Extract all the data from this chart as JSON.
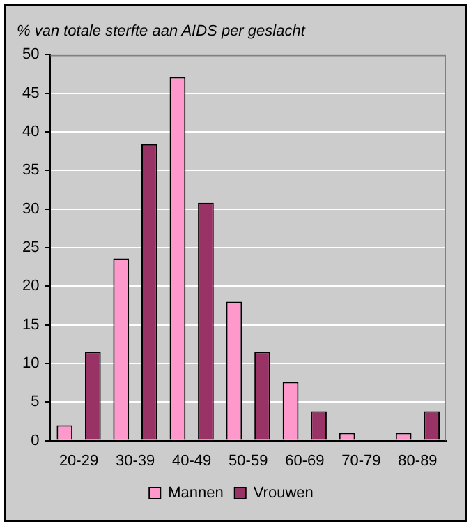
{
  "chart_data": {
    "type": "bar",
    "title": "% van totale sterfte aan AIDS per geslacht",
    "categories": [
      "20-29",
      "30-39",
      "40-49",
      "50-59",
      "60-69",
      "70-79",
      "80-89"
    ],
    "series": [
      {
        "name": "Mannen",
        "color": "#ff99cc",
        "values": [
          2,
          23.6,
          47.1,
          18,
          7.6,
          1,
          1
        ]
      },
      {
        "name": "Vrouwen",
        "color": "#993366",
        "values": [
          11.5,
          38.4,
          30.8,
          11.5,
          3.8,
          0,
          3.8
        ]
      }
    ],
    "ylim": [
      0,
      50
    ],
    "yticks": [
      0,
      5,
      10,
      15,
      20,
      25,
      30,
      35,
      40,
      45,
      50
    ],
    "grid": "y",
    "legend": "bottom"
  }
}
